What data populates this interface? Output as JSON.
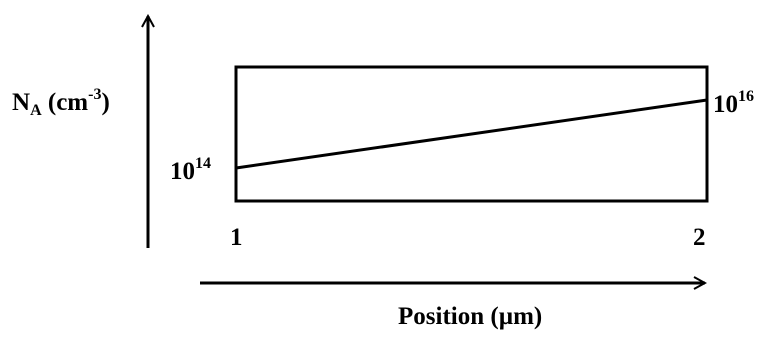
{
  "chart_data": {
    "type": "line",
    "ylabel": {
      "base": "N",
      "sub": "A",
      "unit_open": " (cm",
      "unit_sup": "-3",
      "unit_close": ")"
    },
    "xlabel": "Position (µm)",
    "x": [
      1,
      2
    ],
    "values": [
      100000000000000.0,
      1e+16
    ],
    "xlim": [
      1,
      2
    ],
    "x_tick_labels": [
      "1",
      "2"
    ],
    "point_labels": [
      {
        "base": "10",
        "exp": "14"
      },
      {
        "base": "10",
        "exp": "16"
      }
    ],
    "yscale": "log",
    "grid": false,
    "legend": "none",
    "line_color": "#000000"
  }
}
